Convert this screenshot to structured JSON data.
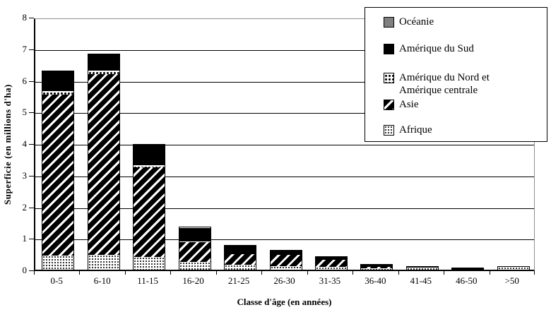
{
  "chart_data": {
    "type": "bar",
    "stacked": true,
    "title": "",
    "xlabel": "Classe d'âge (en années)",
    "ylabel": "Superficie (en millions d'ha)",
    "categories": [
      "0-5",
      "6-10",
      "11-15",
      "16-20",
      "21-25",
      "26-30",
      "31-35",
      "36-40",
      "41-45",
      "46-50",
      ">50"
    ],
    "ylim": [
      0,
      8
    ],
    "ytick_step": 1,
    "grid": true,
    "legend_position": "top-right-overlay",
    "series": [
      {
        "name": "Afrique",
        "pattern": "afrique",
        "values": [
          0.45,
          0.48,
          0.4,
          0.25,
          0.15,
          0.11,
          0.09,
          0.05,
          0.06,
          0.0,
          0.08
        ]
      },
      {
        "name": "Asie",
        "pattern": "asie",
        "values": [
          5.1,
          5.72,
          2.85,
          0.63,
          0.35,
          0.37,
          0.22,
          0.03,
          0.0,
          0.0,
          0.0
        ]
      },
      {
        "name": "Amérique du Nord et Amérique centrale",
        "pattern": "nord",
        "values": [
          0.1,
          0.1,
          0.05,
          0.02,
          0.0,
          0.0,
          0.0,
          0.02,
          0.0,
          0.0,
          0.0
        ]
      },
      {
        "name": "Amérique du Sud",
        "pattern": "sud",
        "values": [
          0.62,
          0.52,
          0.65,
          0.43,
          0.25,
          0.13,
          0.09,
          0.06,
          0.02,
          0.05,
          0.0
        ]
      },
      {
        "name": "Océanie",
        "pattern": "oceanie",
        "values": [
          0,
          0,
          0,
          0,
          0,
          0,
          0,
          0,
          0,
          0,
          0
        ]
      }
    ],
    "totals": [
      6.27,
      6.82,
      3.95,
      1.33,
      0.75,
      0.61,
      0.4,
      0.16,
      0.08,
      0.05,
      0.08
    ]
  },
  "legend": {
    "items": [
      {
        "label": "Océanie",
        "pattern": "oceanie"
      },
      {
        "label": "Amérique du Sud",
        "pattern": "sud"
      },
      {
        "label": "Amérique du Nord et\nAmérique centrale",
        "pattern": "nord"
      },
      {
        "label": "Asie",
        "pattern": "asie"
      },
      {
        "label": "Afrique",
        "pattern": "afrique"
      }
    ]
  },
  "colors": {
    "bar_black": "#000000",
    "oceania_gray": "#808080",
    "background": "#ffffff",
    "grid": "#000000",
    "frame_gray": "#909090"
  }
}
